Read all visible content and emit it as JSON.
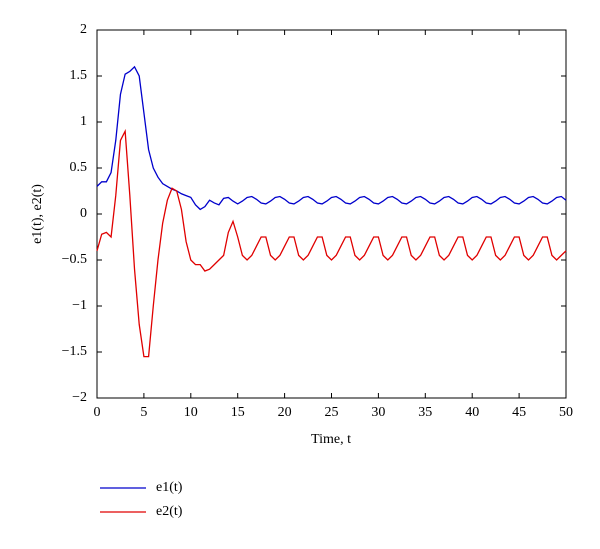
{
  "chart_data": {
    "type": "line",
    "xlabel": "Time, t",
    "ylabel": "e1(t), e2(t)",
    "x": [
      0,
      0.5,
      1,
      1.5,
      2,
      2.5,
      3,
      3.5,
      4,
      4.5,
      5,
      5.5,
      6,
      6.5,
      7,
      7.5,
      8,
      8.5,
      9,
      9.5,
      10,
      10.5,
      11,
      11.5,
      12,
      12.5,
      13,
      13.5,
      14,
      14.5,
      15,
      15.5,
      16,
      16.5,
      17,
      17.5,
      18,
      18.5,
      19,
      19.5,
      20,
      20.5,
      21,
      21.5,
      22,
      22.5,
      23,
      23.5,
      24,
      24.5,
      25,
      25.5,
      26,
      26.5,
      27,
      27.5,
      28,
      28.5,
      29,
      29.5,
      30,
      30.5,
      31,
      31.5,
      32,
      32.5,
      33,
      33.5,
      34,
      34.5,
      35,
      35.5,
      36,
      36.5,
      37,
      37.5,
      38,
      38.5,
      39,
      39.5,
      40,
      40.5,
      41,
      41.5,
      42,
      42.5,
      43,
      43.5,
      44,
      44.5,
      45,
      45.5,
      46,
      46.5,
      47,
      47.5,
      48,
      48.5,
      49,
      49.5,
      50
    ],
    "series": [
      {
        "name": "e1(t)",
        "color": "#0000cc",
        "values": [
          0.3,
          0.35,
          0.35,
          0.45,
          0.8,
          1.3,
          1.52,
          1.55,
          1.6,
          1.5,
          1.1,
          0.7,
          0.5,
          0.4,
          0.33,
          0.3,
          0.27,
          0.25,
          0.22,
          0.2,
          0.18,
          0.1,
          0.05,
          0.08,
          0.15,
          0.12,
          0.1,
          0.17,
          0.18,
          0.14,
          0.11,
          0.14,
          0.18,
          0.19,
          0.16,
          0.12,
          0.11,
          0.14,
          0.18,
          0.19,
          0.16,
          0.12,
          0.11,
          0.14,
          0.18,
          0.19,
          0.16,
          0.12,
          0.11,
          0.14,
          0.18,
          0.19,
          0.16,
          0.12,
          0.11,
          0.14,
          0.18,
          0.19,
          0.16,
          0.12,
          0.11,
          0.14,
          0.18,
          0.19,
          0.16,
          0.12,
          0.11,
          0.14,
          0.18,
          0.19,
          0.16,
          0.12,
          0.11,
          0.14,
          0.18,
          0.19,
          0.16,
          0.12,
          0.11,
          0.14,
          0.18,
          0.19,
          0.16,
          0.12,
          0.11,
          0.14,
          0.18,
          0.19,
          0.16,
          0.12,
          0.11,
          0.14,
          0.18,
          0.19,
          0.16,
          0.12,
          0.11,
          0.14,
          0.18,
          0.19,
          0.15
        ]
      },
      {
        "name": "e2(t)",
        "color": "#e00000",
        "values": [
          -0.4,
          -0.22,
          -0.2,
          -0.25,
          0.2,
          0.8,
          0.9,
          0.2,
          -0.6,
          -1.2,
          -1.55,
          -1.55,
          -1.0,
          -0.5,
          -0.1,
          0.15,
          0.28,
          0.25,
          0.05,
          -0.3,
          -0.5,
          -0.55,
          -0.55,
          -0.62,
          -0.6,
          -0.55,
          -0.5,
          -0.45,
          -0.2,
          -0.08,
          -0.25,
          -0.45,
          -0.5,
          -0.45,
          -0.35,
          -0.25,
          -0.25,
          -0.45,
          -0.5,
          -0.45,
          -0.35,
          -0.25,
          -0.25,
          -0.45,
          -0.5,
          -0.45,
          -0.35,
          -0.25,
          -0.25,
          -0.45,
          -0.5,
          -0.45,
          -0.35,
          -0.25,
          -0.25,
          -0.45,
          -0.5,
          -0.45,
          -0.35,
          -0.25,
          -0.25,
          -0.45,
          -0.5,
          -0.45,
          -0.35,
          -0.25,
          -0.25,
          -0.45,
          -0.5,
          -0.45,
          -0.35,
          -0.25,
          -0.25,
          -0.45,
          -0.5,
          -0.45,
          -0.35,
          -0.25,
          -0.25,
          -0.45,
          -0.5,
          -0.45,
          -0.35,
          -0.25,
          -0.25,
          -0.45,
          -0.5,
          -0.45,
          -0.35,
          -0.25,
          -0.25,
          -0.45,
          -0.5,
          -0.45,
          -0.35,
          -0.25,
          -0.25,
          -0.45,
          -0.5,
          -0.45,
          -0.4
        ]
      }
    ],
    "xlim": [
      0,
      50
    ],
    "xticks": [
      0,
      5,
      10,
      15,
      20,
      25,
      30,
      35,
      40,
      45,
      50
    ],
    "ylim": [
      -2,
      2
    ],
    "yticks": [
      {
        "value": -2,
        "label": "−2"
      },
      {
        "value": -1.5,
        "label": "−1.5"
      },
      {
        "value": -1,
        "label": "−1"
      },
      {
        "value": -0.5,
        "label": "−0.5"
      },
      0,
      0.5,
      1,
      1.5,
      2
    ],
    "grid": false,
    "legend": "below-left"
  }
}
